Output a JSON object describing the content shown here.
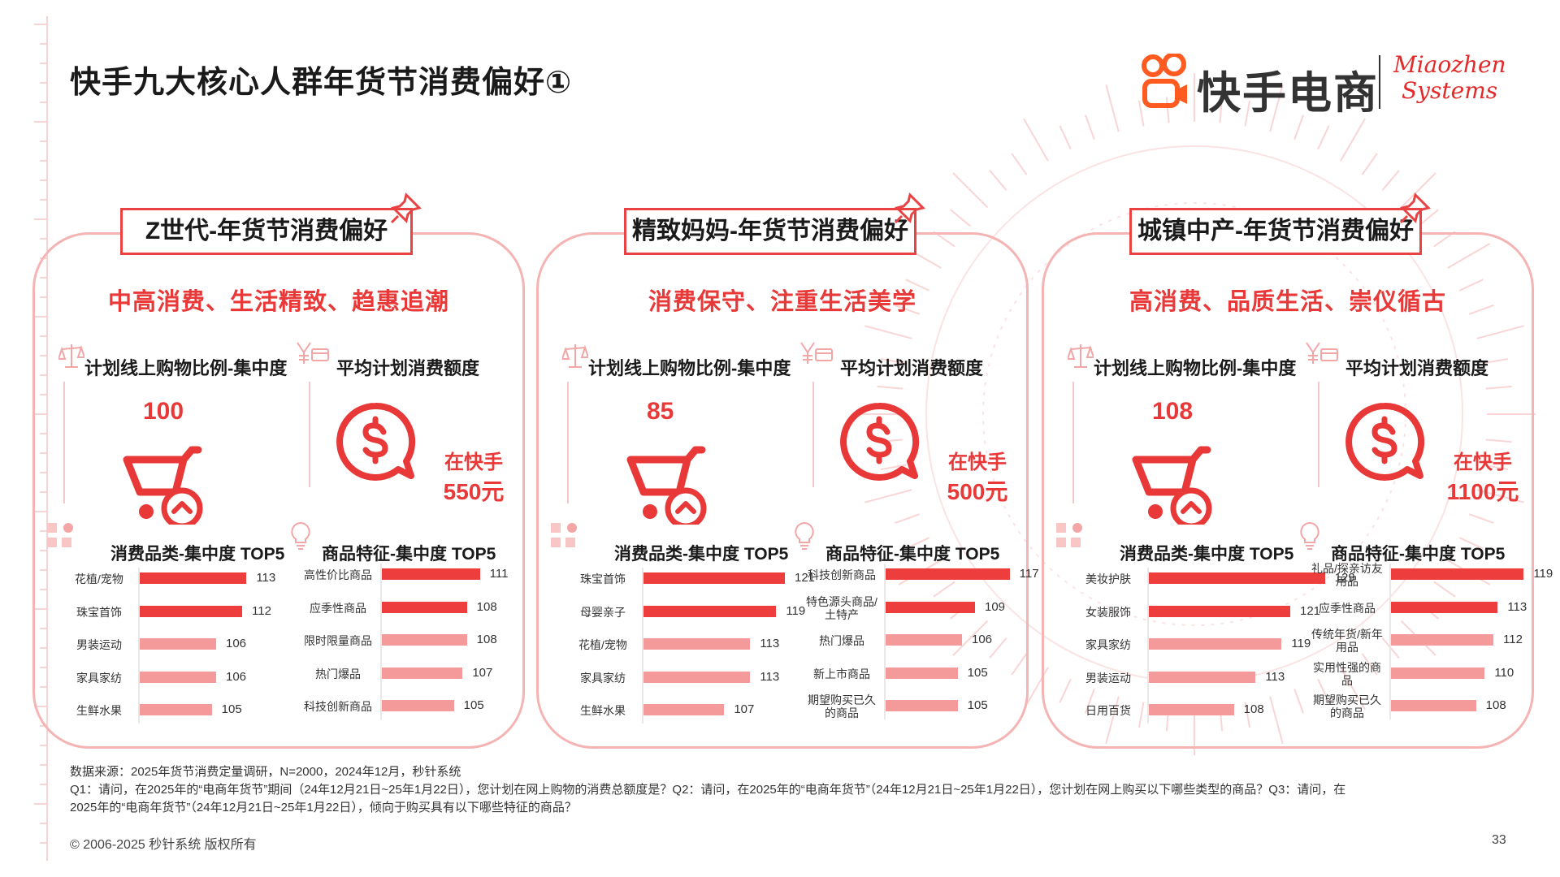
{
  "title": "快手九大核心人群年货节消费偏好①",
  "brand": {
    "name": "快手电商",
    "partner_line1": "Miaozhen",
    "partner_line2": "Systems"
  },
  "colors": {
    "accent": "#e83838",
    "bar_strong": "#ee3d3d",
    "bar_light": "#f49a9a",
    "panel_border": "#f5b4b4"
  },
  "panels": [
    {
      "title": "Z世代-年货节消费偏好",
      "tagline": "中高消费、生活精致、趋惠追潮",
      "ratio_heading": "计划线上购物比例-集中度",
      "ratio_value": "100",
      "spend_heading": "平均计划消费额度",
      "spend_label": "在快手",
      "spend_value": "550元",
      "cat_heading": "消费品类-集中度 TOP5",
      "feat_heading": "商品特征-集中度 TOP5"
    },
    {
      "title": "精致妈妈-年货节消费偏好",
      "tagline": "消费保守、注重生活美学",
      "ratio_heading": "计划线上购物比例-集中度",
      "ratio_value": "85",
      "spend_heading": "平均计划消费额度",
      "spend_label": "在快手",
      "spend_value": "500元",
      "cat_heading": "消费品类-集中度 TOP5",
      "feat_heading": "商品特征-集中度 TOP5"
    },
    {
      "title": "城镇中产-年货节消费偏好",
      "tagline": "高消费、品质生活、崇仪循古",
      "ratio_heading": "计划线上购物比例-集中度",
      "ratio_value": "108",
      "spend_heading": "平均计划消费额度",
      "spend_label": "在快手",
      "spend_value": "1100元",
      "cat_heading": "消费品类-集中度 TOP5",
      "feat_heading": "商品特征-集中度 TOP5"
    }
  ],
  "chart_data": [
    {
      "type": "bar",
      "title": "消费品类-集中度 TOP5",
      "group": "Z世代",
      "categories": [
        "花植/宠物",
        "珠宝首饰",
        "男装运动",
        "家具家纺",
        "生鲜水果"
      ],
      "values": [
        113,
        112,
        106,
        106,
        105
      ]
    },
    {
      "type": "bar",
      "title": "商品特征-集中度 TOP5",
      "group": "Z世代",
      "categories": [
        "高性价比商品",
        "应季性商品",
        "限时限量商品",
        "热门爆品",
        "科技创新商品"
      ],
      "values": [
        111,
        108,
        108,
        107,
        105
      ]
    },
    {
      "type": "bar",
      "title": "消费品类-集中度 TOP5",
      "group": "精致妈妈",
      "categories": [
        "珠宝首饰",
        "母婴亲子",
        "花植/宠物",
        "家具家纺",
        "生鲜水果"
      ],
      "values": [
        121,
        119,
        113,
        113,
        107
      ]
    },
    {
      "type": "bar",
      "title": "商品特征-集中度 TOP5",
      "group": "精致妈妈",
      "categories": [
        "科技创新商品",
        "特色源头商品/土特产",
        "热门爆品",
        "新上市商品",
        "期望购买已久的商品"
      ],
      "values": [
        117,
        109,
        106,
        105,
        105
      ]
    },
    {
      "type": "bar",
      "title": "消费品类-集中度 TOP5",
      "group": "城镇中产",
      "categories": [
        "美妆护肤",
        "女装服饰",
        "家具家纺",
        "男装运动",
        "日用百货"
      ],
      "values": [
        129,
        121,
        119,
        113,
        108
      ]
    },
    {
      "type": "bar",
      "title": "商品特征-集中度 TOP5",
      "group": "城镇中产",
      "categories": [
        "礼品/探亲访友用品",
        "应季性商品",
        "传统年货/新年用品",
        "实用性强的商品",
        "期望购买已久的商品"
      ],
      "values": [
        119,
        113,
        112,
        110,
        108
      ]
    }
  ],
  "footnote": {
    "source": "数据来源：2025年货节消费定量调研，N=2000，2024年12月，秒针系统",
    "q_line1": "Q1：请问，在2025年的“电商年货节”期间（24年12月21日~25年1月22日），您计划在网上购物的消费总额度是？Q2：请问，在2025年的“电商年货节”（24年12月21日~25年1月22日），您计划在网上购买以下哪些类型的商品？Q3：请问，在",
    "q_line2": "2025年的“电商年货节”（24年12月21日~25年1月22日），倾向于购买具有以下哪些特征的商品？"
  },
  "copyright": "© 2006-2025 秒针系统 版权所有",
  "page_number": "33"
}
